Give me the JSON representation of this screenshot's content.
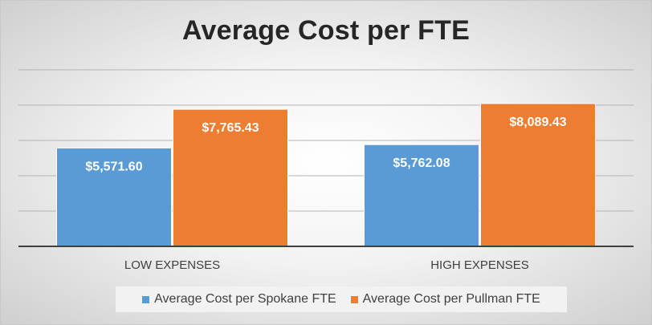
{
  "chart_data": {
    "type": "bar",
    "title": "Average Cost per FTE",
    "xlabel": "",
    "ylabel": "",
    "categories": [
      "LOW EXPENSES",
      "HIGH EXPENSES"
    ],
    "series": [
      {
        "name": "Average Cost per Spokane FTE",
        "color": "#5b9bd5",
        "values": [
          5571.6,
          5762.08
        ],
        "labels": [
          "$5,571.60",
          "$5,762.08"
        ]
      },
      {
        "name": "Average Cost per Pullman FTE",
        "color": "#ed7d31",
        "values": [
          7765.43,
          8089.43
        ],
        "labels": [
          "$7,765.43",
          "$8,089.43"
        ]
      }
    ],
    "ylim": [
      0,
      10000
    ],
    "gridlines": true,
    "legend": "bottom"
  }
}
